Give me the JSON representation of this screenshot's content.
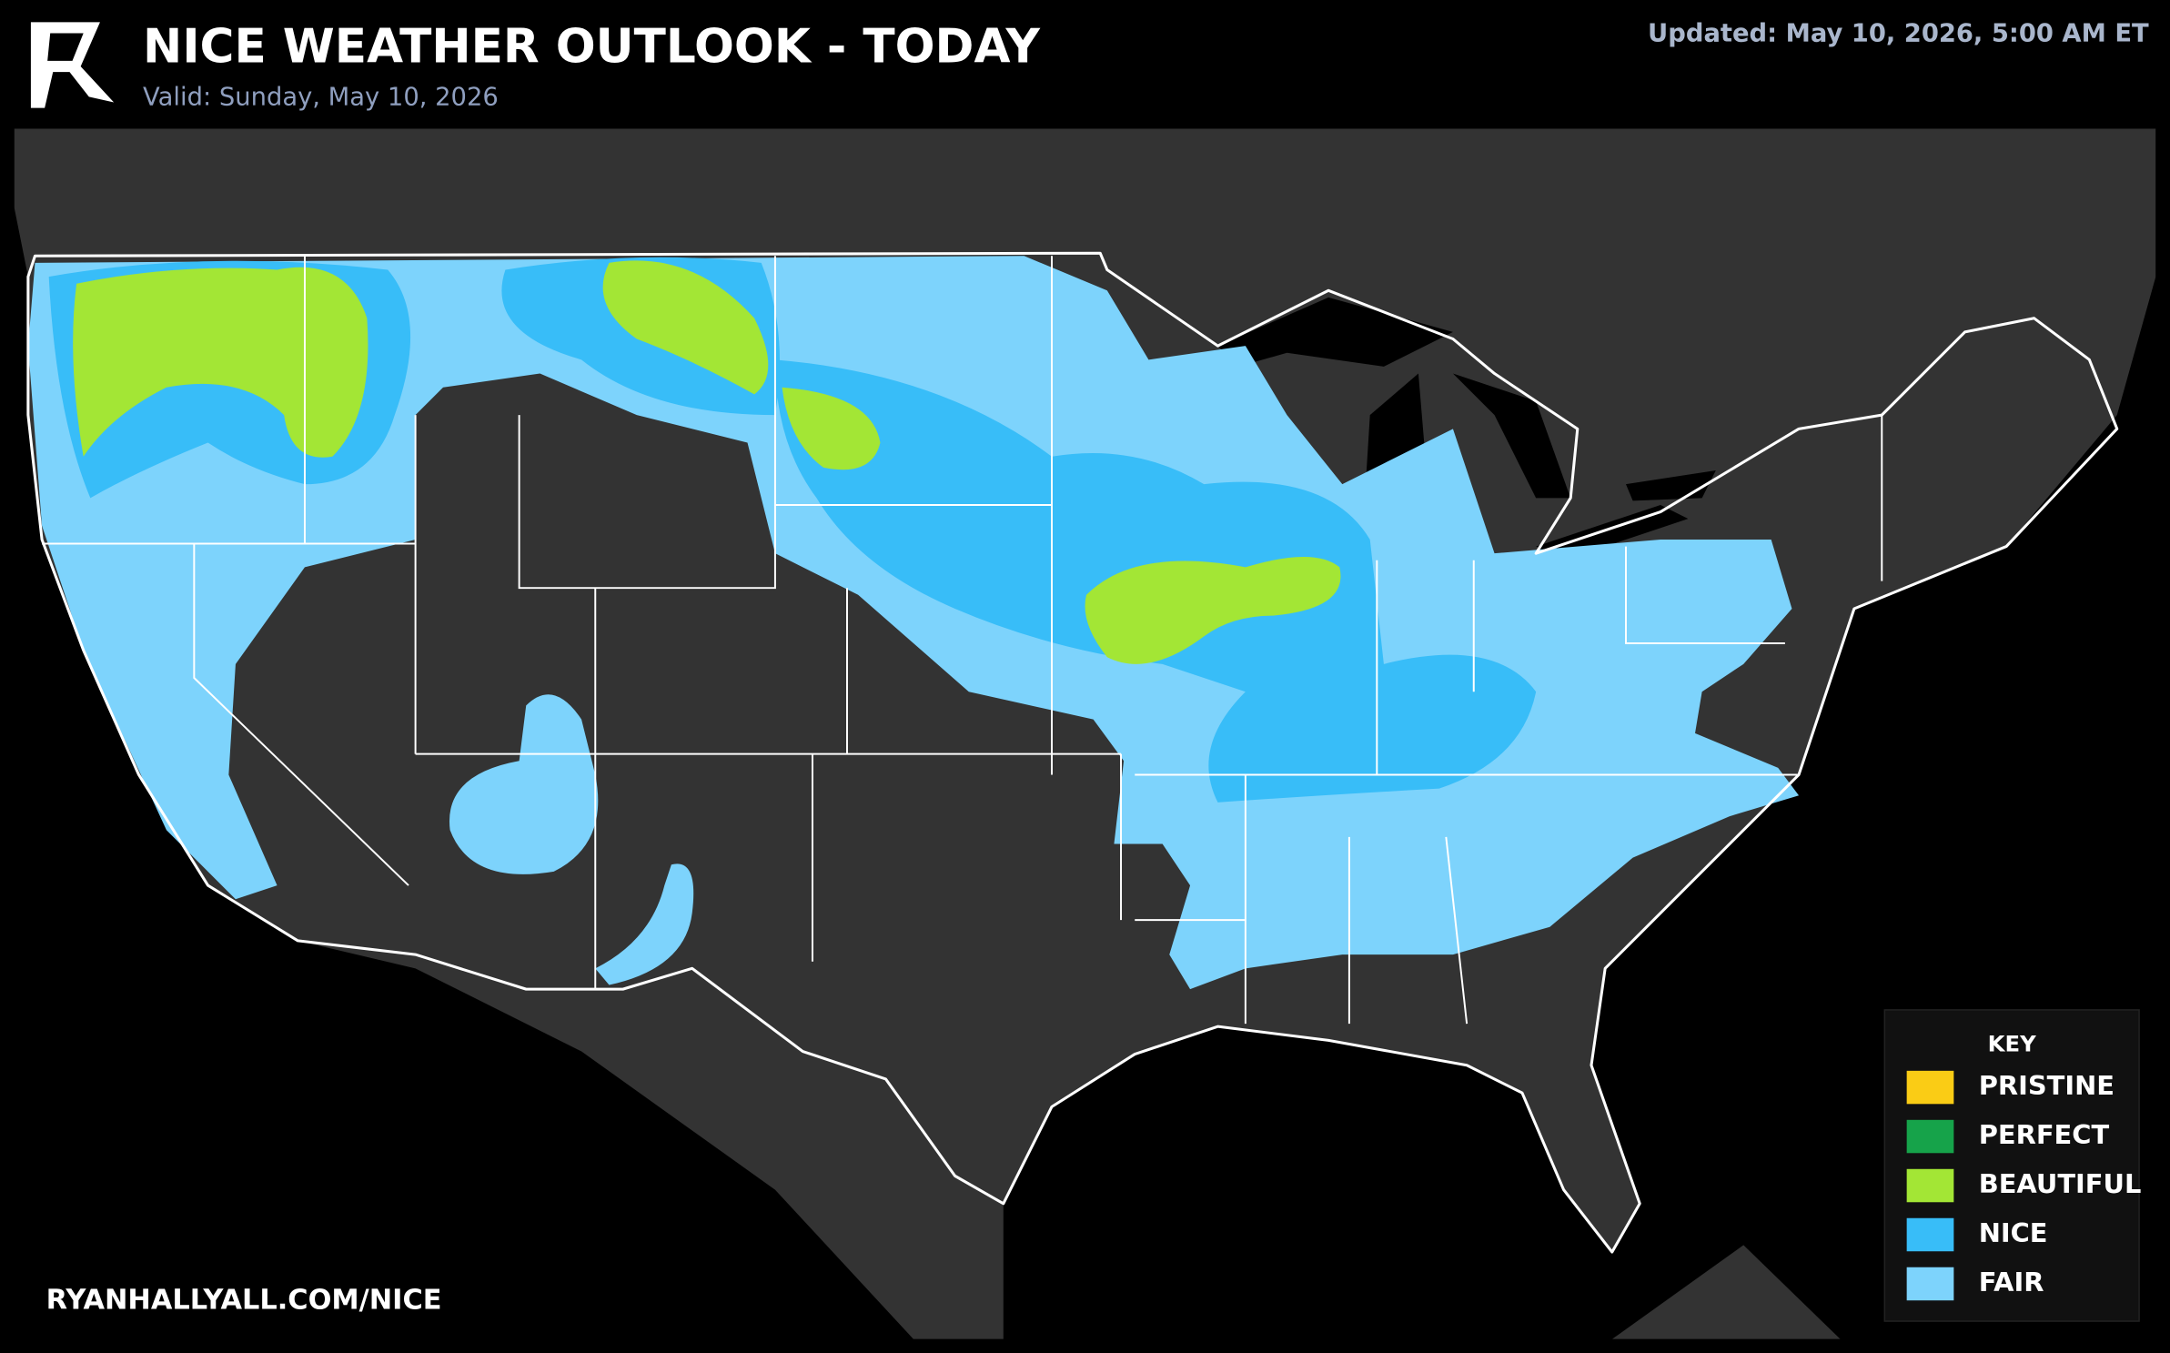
{
  "header": {
    "title": "NICE WEATHER OUTLOOK - TODAY",
    "valid": "Valid: Sunday, May 10, 2026",
    "updated": "Updated: May 10, 2026, 5:00 AM ET"
  },
  "footer": {
    "url": "RYANHALLYALL.COM/NICE"
  },
  "key": {
    "title": "KEY",
    "items": [
      {
        "label": "PRISTINE",
        "color": "#facc15"
      },
      {
        "label": "PERFECT",
        "color": "#16a34a"
      },
      {
        "label": "BEAUTIFUL",
        "color": "#a3e635"
      },
      {
        "label": "NICE",
        "color": "#38bdf8"
      },
      {
        "label": "FAIR",
        "color": "#7dd3fc"
      }
    ]
  }
}
